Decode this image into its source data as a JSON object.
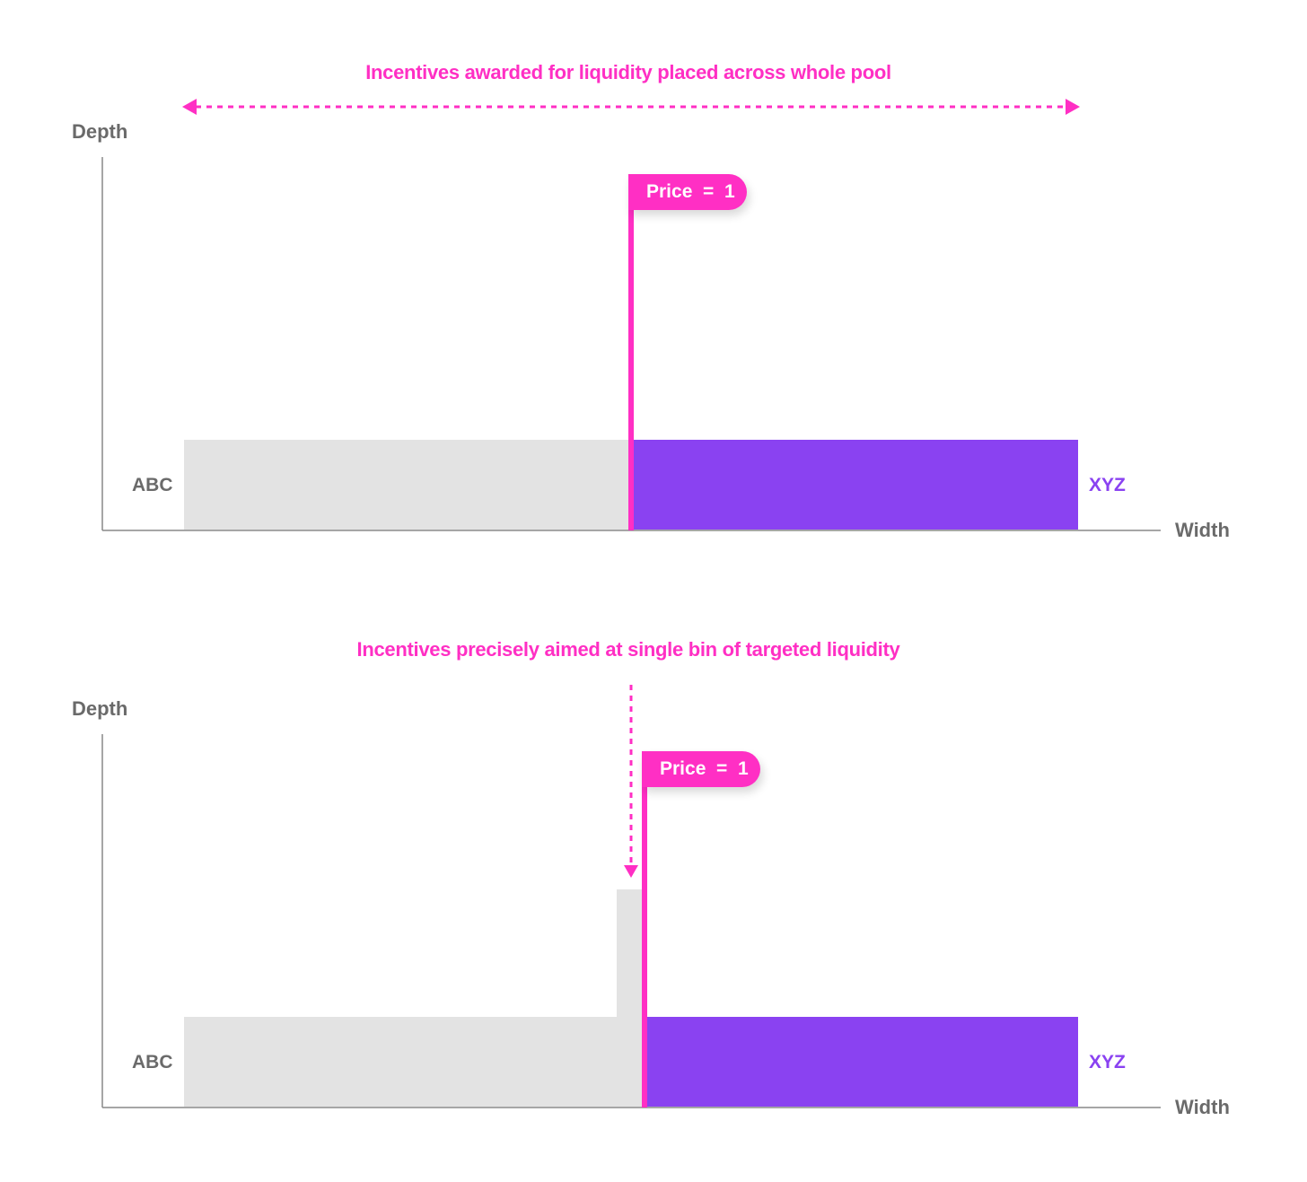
{
  "colors": {
    "accent": "#ff2fc4",
    "abc": "#e3e3e3",
    "xyz": "#8a42f1",
    "axis": "#888888",
    "label": "#6a6a6a"
  },
  "panels": [
    {
      "headline": "Incentives awarded for liquidity placed across whole pool",
      "indicator": "double-arrow-across-pool",
      "y_label": "Depth",
      "x_label": "Width",
      "left_token": "ABC",
      "right_token": "XYZ",
      "price_tag": "Price  =  1"
    },
    {
      "headline": "Incentives precisely aimed at single bin of targeted liquidity",
      "indicator": "down-arrow-to-single-bin",
      "y_label": "Depth",
      "x_label": "Width",
      "left_token": "ABC",
      "right_token": "XYZ",
      "price_tag": "Price  =  1"
    }
  ]
}
